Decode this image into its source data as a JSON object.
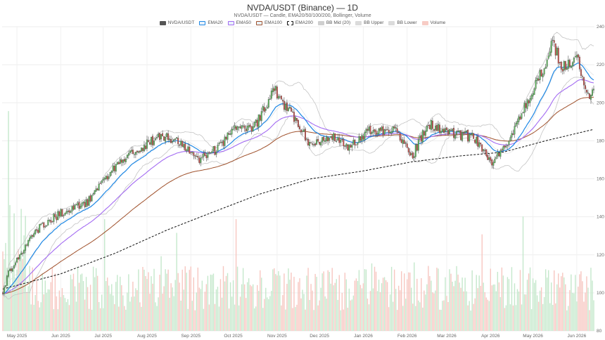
{
  "chart_data": {
    "type": "candlestick",
    "title": "NVDA/USDT (Binance) — 1D",
    "subtitle": "NVDA/USDT — Candle, EMA20/50/100/200, Bollinger, Volume",
    "y_axis": {
      "position": "right",
      "range": [
        80,
        240
      ],
      "ticks": [
        80,
        100,
        120,
        140,
        160,
        180,
        200,
        220,
        240
      ]
    },
    "x_axis": {
      "ticks": [
        "May 2025",
        "Jun 2025",
        "Jul 2025",
        "Aug 2025",
        "Sep 2025",
        "Oct 2025",
        "Nov 2025",
        "Dec 2025",
        "Jan 2026",
        "Feb 2026",
        "Mar 2026",
        "Apr 2026",
        "May 2026",
        "Jun 2026"
      ]
    },
    "grid": true,
    "legend": {
      "placement": "top-center",
      "items": [
        {
          "label": "NVDA/USDT",
          "color": "#555555",
          "style": "solid-fill"
        },
        {
          "label": "EMA20",
          "color": "#1e88e5",
          "style": "line"
        },
        {
          "label": "EMA50",
          "color": "#a36bf2",
          "style": "line"
        },
        {
          "label": "EMA100",
          "color": "#a0522d",
          "style": "line"
        },
        {
          "label": "EMA200",
          "color": "#111111",
          "style": "dashed"
        },
        {
          "label": "BB Mid (20)",
          "color": "#bbbbbb",
          "style": "box"
        },
        {
          "label": "BB Upper",
          "color": "#cccccc",
          "style": "box"
        },
        {
          "label": "BB Lower",
          "color": "#cccccc",
          "style": "box"
        },
        {
          "label": "Volume",
          "color": "#f4b6ad",
          "style": "box"
        }
      ]
    },
    "colors": {
      "up": "#5cb85c",
      "down": "#c9504a",
      "ema20": "#1e88e5",
      "ema50": "#a36bf2",
      "ema100": "#a0522d",
      "ema200": "#111111",
      "bollinger": "#c4c4c4",
      "volume_up": "#bfe6c6",
      "volume_down": "#f6c1ba"
    },
    "close_anchors": [
      {
        "date": "2025-04-21",
        "close": 100
      },
      {
        "date": "2025-04-25",
        "close": 110
      },
      {
        "date": "2025-05-15",
        "close": 133
      },
      {
        "date": "2025-06-01",
        "close": 142
      },
      {
        "date": "2025-06-20",
        "close": 148
      },
      {
        "date": "2025-07-10",
        "close": 167
      },
      {
        "date": "2025-07-25",
        "close": 175
      },
      {
        "date": "2025-08-10",
        "close": 182
      },
      {
        "date": "2025-08-25",
        "close": 180
      },
      {
        "date": "2025-09-05",
        "close": 170
      },
      {
        "date": "2025-09-20",
        "close": 176
      },
      {
        "date": "2025-10-05",
        "close": 188
      },
      {
        "date": "2025-10-15",
        "close": 186
      },
      {
        "date": "2025-10-30",
        "close": 207
      },
      {
        "date": "2025-11-10",
        "close": 195
      },
      {
        "date": "2025-11-25",
        "close": 178
      },
      {
        "date": "2025-12-10",
        "close": 183
      },
      {
        "date": "2025-12-20",
        "close": 176
      },
      {
        "date": "2026-01-05",
        "close": 186
      },
      {
        "date": "2026-01-25",
        "close": 185
      },
      {
        "date": "2026-02-05",
        "close": 172
      },
      {
        "date": "2026-02-15",
        "close": 189
      },
      {
        "date": "2026-02-28",
        "close": 186
      },
      {
        "date": "2026-03-10",
        "close": 183
      },
      {
        "date": "2026-03-20",
        "close": 182
      },
      {
        "date": "2026-04-01",
        "close": 168
      },
      {
        "date": "2026-04-10",
        "close": 175
      },
      {
        "date": "2026-04-25",
        "close": 198
      },
      {
        "date": "2026-05-05",
        "close": 212
      },
      {
        "date": "2026-05-15",
        "close": 232
      },
      {
        "date": "2026-05-22",
        "close": 218
      },
      {
        "date": "2026-06-01",
        "close": 224
      },
      {
        "date": "2026-06-10",
        "close": 203
      },
      {
        "date": "2026-06-13",
        "close": 205
      }
    ],
    "ema200_anchors": [
      {
        "date": "2025-04-21",
        "value": 102
      },
      {
        "date": "2025-06-01",
        "value": 110
      },
      {
        "date": "2025-07-10",
        "value": 121
      },
      {
        "date": "2025-08-15",
        "value": 133
      },
      {
        "date": "2025-09-15",
        "value": 142
      },
      {
        "date": "2025-10-20",
        "value": 152
      },
      {
        "date": "2025-11-25",
        "value": 160
      },
      {
        "date": "2025-12-31",
        "value": 164
      },
      {
        "date": "2026-02-05",
        "value": 169
      },
      {
        "date": "2026-03-10",
        "value": 172
      },
      {
        "date": "2026-04-10",
        "value": 174
      },
      {
        "date": "2026-05-10",
        "value": 180
      },
      {
        "date": "2026-06-13",
        "value": 186
      }
    ]
  }
}
